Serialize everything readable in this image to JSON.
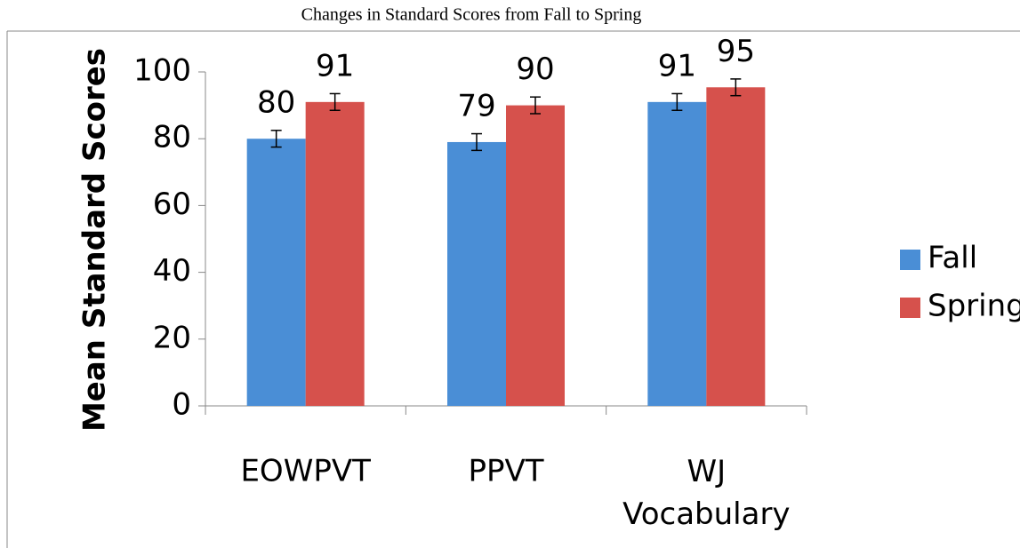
{
  "chart_data": {
    "type": "bar",
    "title": "Changes in Standard Scores from Fall to Spring",
    "y_label": "Mean Standard Scores",
    "categories": [
      "EOWPVT",
      "PPVT",
      "WJ Vocabulary"
    ],
    "series": [
      {
        "name": "Fall",
        "color": "#4a8ed6",
        "values": [
          80,
          79,
          91
        ],
        "errors": [
          2.5,
          2.5,
          2.5
        ]
      },
      {
        "name": "Spring",
        "color": "#d6514c",
        "values": [
          91,
          90,
          95.4
        ],
        "value_labels": [
          "91",
          "90",
          "95"
        ],
        "errors": [
          2.5,
          2.5,
          2.5
        ]
      }
    ],
    "ylim": [
      0,
      100
    ],
    "yticks": [
      0,
      20,
      40,
      60,
      80,
      100
    ],
    "legend": "right"
  }
}
